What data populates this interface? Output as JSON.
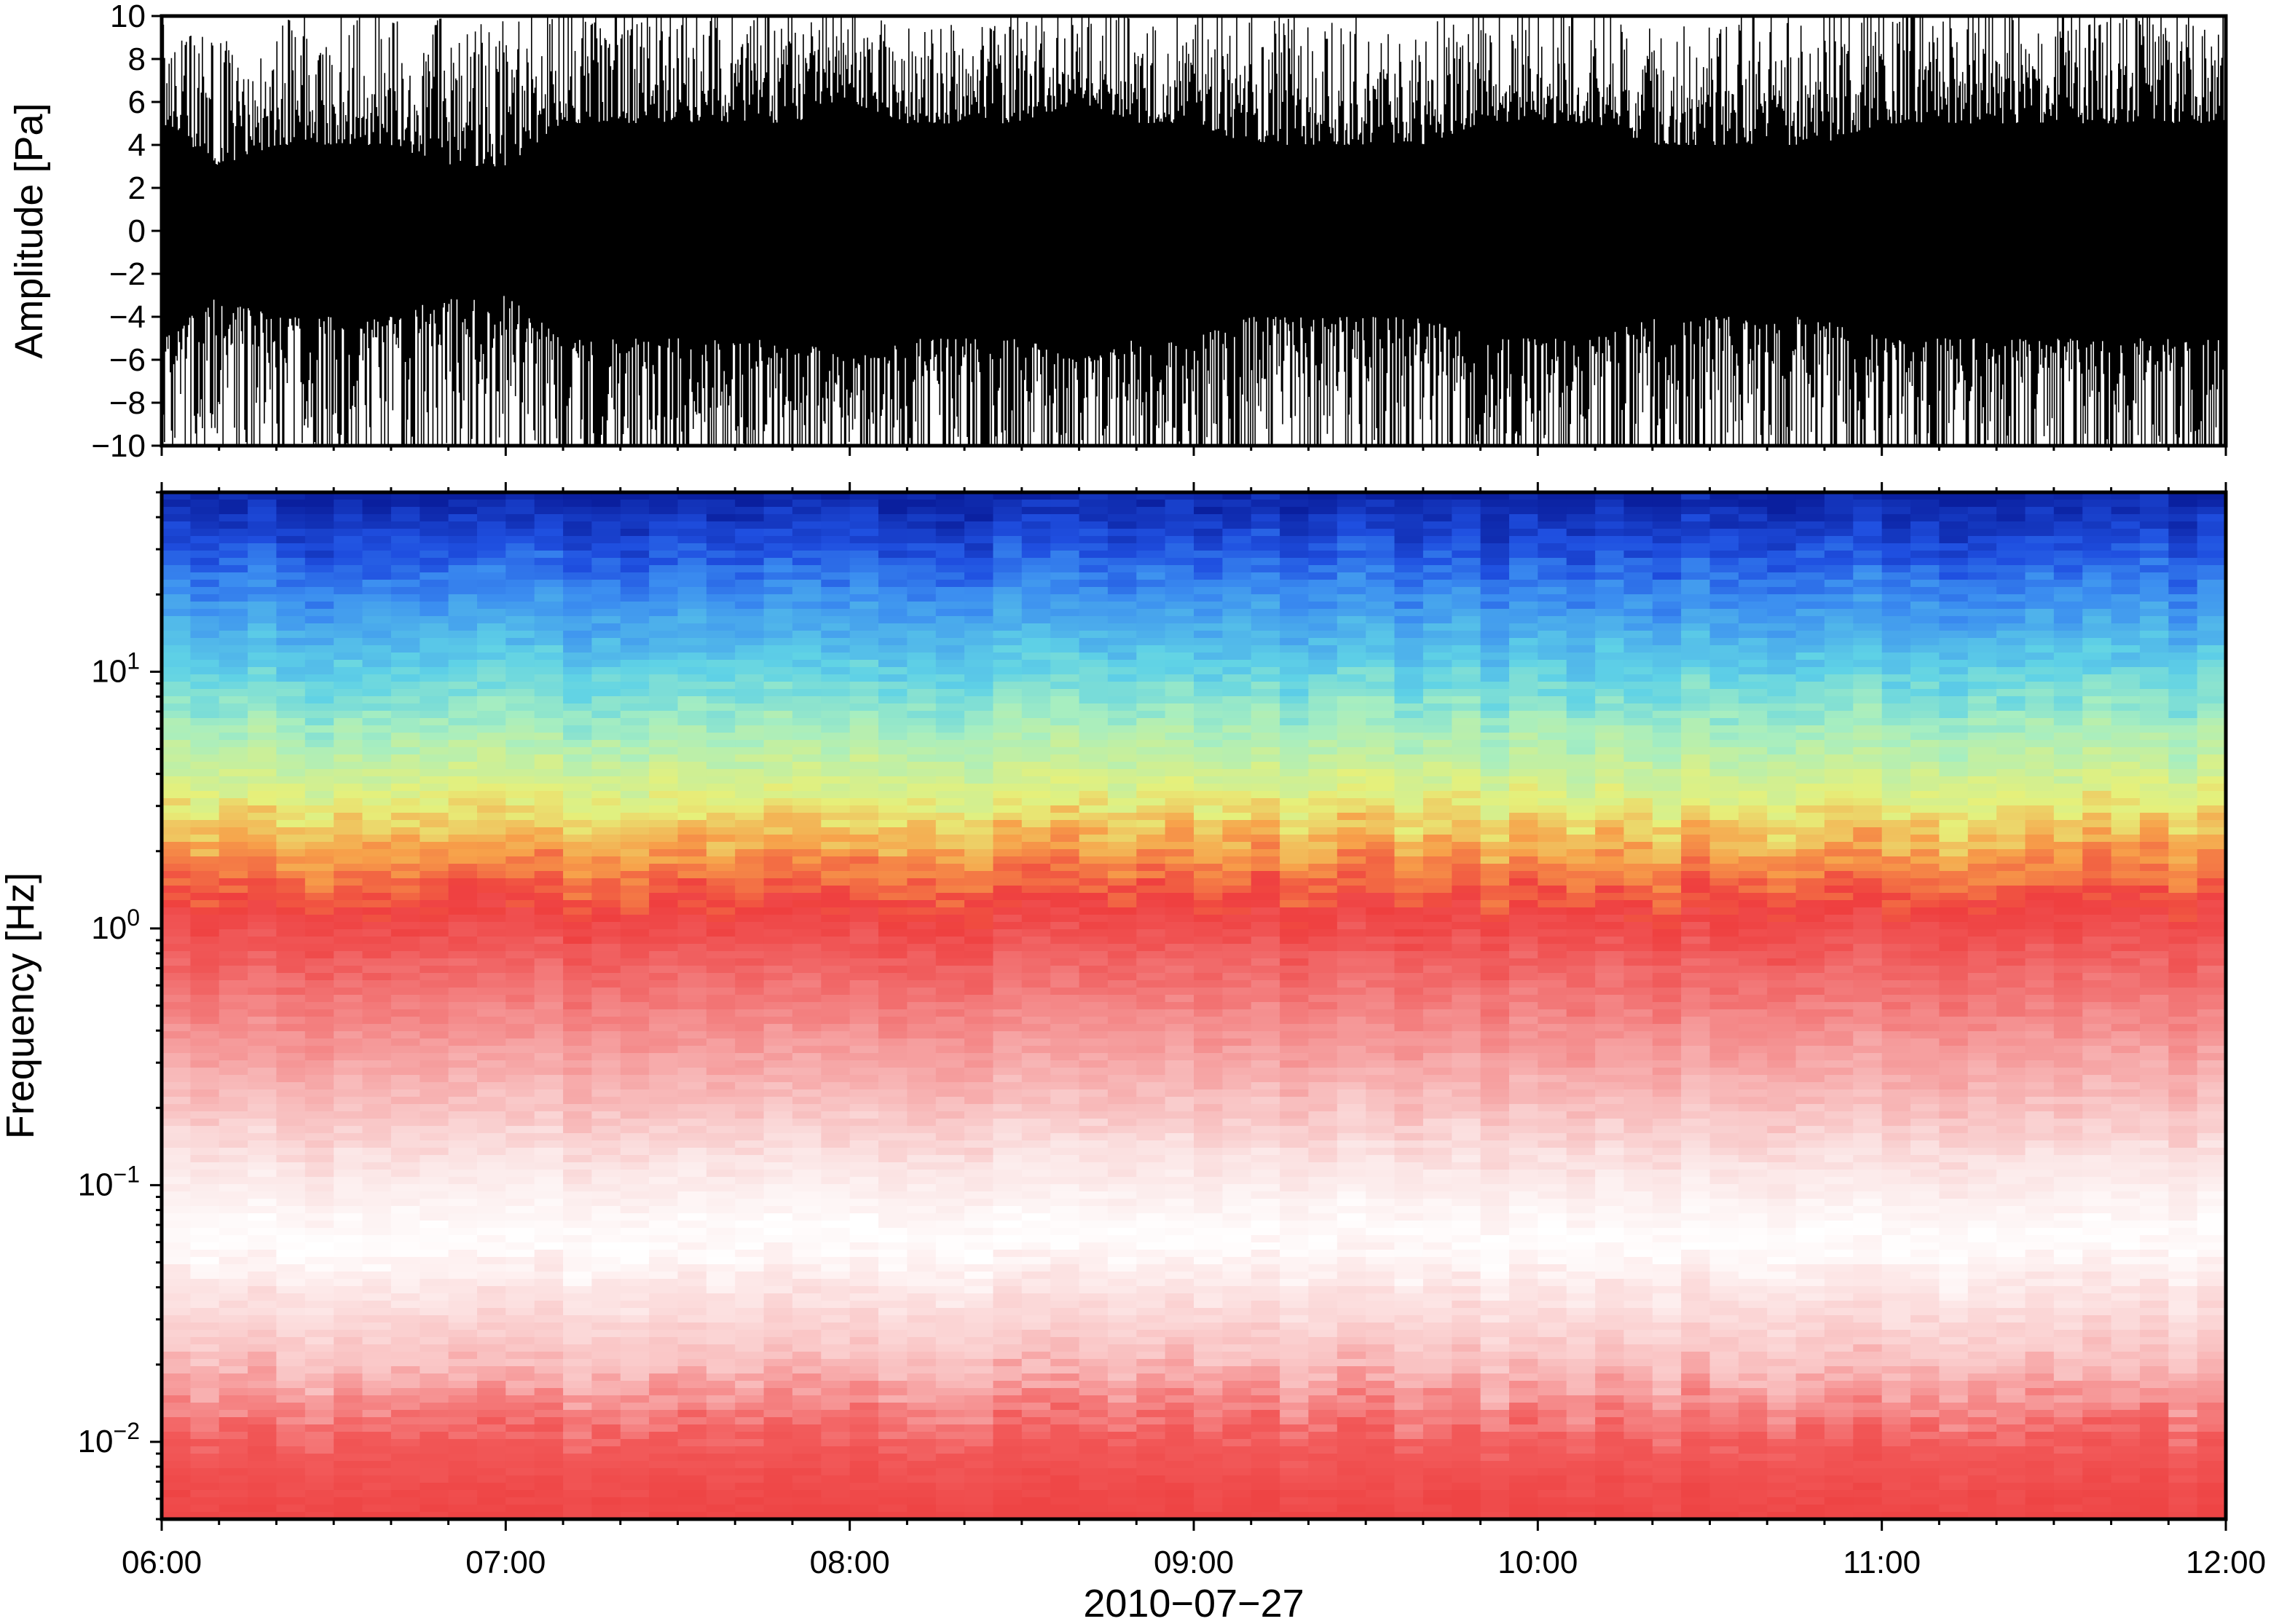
{
  "chart_data": [
    {
      "type": "line",
      "panel": "waveform",
      "ylabel": "Amplitude [Pa]",
      "ylim": [
        -10,
        10
      ],
      "yticks": [
        {
          "value": 10,
          "label": "10"
        },
        {
          "value": 8,
          "label": "8"
        },
        {
          "value": 6,
          "label": "6"
        },
        {
          "value": 4,
          "label": "4"
        },
        {
          "value": 2,
          "label": "2"
        },
        {
          "value": 0,
          "label": "0"
        },
        {
          "value": -2,
          "label": "−2"
        },
        {
          "value": -4,
          "label": "−4"
        },
        {
          "value": -6,
          "label": "−6"
        },
        {
          "value": -8,
          "label": "−8"
        },
        {
          "value": -10,
          "label": "−10"
        }
      ],
      "xlim": [
        "06:00",
        "12:00"
      ],
      "series": [
        {
          "color": "#000000",
          "envelope_every_10_min": {
            "x": [
              "06:00",
              "06:10",
              "06:20",
              "06:30",
              "06:40",
              "06:50",
              "07:00",
              "07:10",
              "07:20",
              "07:30",
              "07:40",
              "07:50",
              "08:00",
              "08:10",
              "08:20",
              "08:30",
              "08:40",
              "08:50",
              "09:00",
              "09:10",
              "09:20",
              "09:30",
              "09:40",
              "09:50",
              "10:00",
              "10:10",
              "10:20",
              "10:30",
              "10:40",
              "10:50",
              "11:00",
              "11:10",
              "11:20",
              "11:30",
              "11:40",
              "11:50",
              "12:00"
            ],
            "max": [
              10,
              8,
              9,
              10,
              10,
              9,
              9,
              10,
              10,
              10,
              10,
              10,
              10,
              9,
              9,
              10,
              10,
              10,
              10,
              10,
              10,
              9,
              9,
              10,
              10,
              10,
              9,
              9,
              10,
              10,
              10,
              10,
              10,
              10,
              10,
              10,
              10
            ],
            "min": [
              -10,
              -8,
              -9,
              -10,
              -9,
              -9,
              -9,
              -10,
              -10,
              -10,
              -10,
              -10,
              -10,
              -10,
              -10,
              -10,
              -10,
              -10,
              -10,
              -9,
              -9,
              -10,
              -10,
              -10,
              -10,
              -10,
              -10,
              -10,
              -10,
              -10,
              -10,
              -10,
              -10,
              -9,
              -10,
              -10,
              -10
            ],
            "dense_band": [
              5,
              3,
              4,
              4,
              4,
              3,
              3,
              5,
              5,
              5,
              5,
              5,
              6,
              5,
              5,
              5,
              6,
              5,
              5,
              4,
              4,
              4,
              4,
              5,
              5,
              5,
              4,
              4,
              4,
              4,
              5,
              5,
              5,
              5,
              5,
              5,
              5
            ]
          }
        }
      ]
    },
    {
      "type": "heatmap",
      "panel": "spectrogram",
      "ylabel": "Frequency [Hz]",
      "xlabel": "2010−07−27",
      "y_scale": "log",
      "ylim": [
        0.005,
        50
      ],
      "xlim": [
        "06:00",
        "12:00"
      ],
      "xticks": [
        "06:00",
        "07:00",
        "08:00",
        "09:00",
        "10:00",
        "11:00",
        "12:00"
      ],
      "yticks": [
        {
          "value": 10,
          "base": "10",
          "exp": "1"
        },
        {
          "value": 1,
          "base": "10",
          "exp": "0"
        },
        {
          "value": 0.1,
          "base": "10",
          "exp": "−1"
        },
        {
          "value": 0.01,
          "base": "10",
          "exp": "−2"
        }
      ],
      "colormap": [
        "#0a1f9e",
        "#1f4fe0",
        "#3b8df0",
        "#5fd2e6",
        "#c6f08a",
        "#f4dc6c",
        "#f7a14a",
        "#ef3f3f",
        "#f58888",
        "#fbd3d3",
        "#ffffff"
      ],
      "color_by_frequency_hz": {
        "frequency": [
          50,
          30,
          20,
          10,
          6,
          3,
          2,
          1.2,
          0.8,
          0.3,
          0.12,
          0.06,
          0.02,
          0.01,
          0.005
        ],
        "color": [
          "#0a1f9e",
          "#1f4fe0",
          "#3b8df0",
          "#5fd2e6",
          "#a7eec0",
          "#e6f07a",
          "#f7a14a",
          "#ef3f3f",
          "#f05a5a",
          "#f6a4a4",
          "#fbe4e4",
          "#ffffff",
          "#f9c0c0",
          "#f25a5a",
          "#ee4444"
        ]
      },
      "columns": 72
    }
  ]
}
